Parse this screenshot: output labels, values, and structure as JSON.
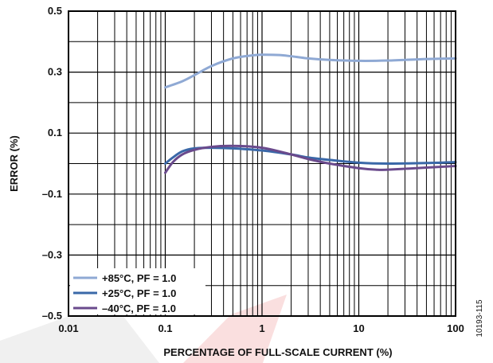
{
  "chart_data": {
    "type": "line",
    "figure_id": "10193-115",
    "xlabel": "PERCENTAGE OF FULL-SCALE CURRENT (%)",
    "ylabel": "ERROR (%)",
    "x_scale": "log",
    "xlim": [
      0.01,
      100
    ],
    "ylim": [
      -0.5,
      0.5
    ],
    "x_ticks": [
      0.01,
      0.1,
      1,
      10,
      100
    ],
    "x_tick_labels": [
      "0.01",
      "0.1",
      "1",
      "10",
      "100"
    ],
    "y_ticks": [
      0.5,
      0.3,
      0.1,
      -0.1,
      -0.3,
      -0.5
    ],
    "y_tick_labels": [
      "0.5",
      "0.3",
      "0.1",
      "–0.1",
      "–0.3",
      "–0.5"
    ],
    "grid": true,
    "legend_position": "bottom-left",
    "series": [
      {
        "name": "+85°C, PF = 1.0",
        "color": "#8FA9D4",
        "points": [
          [
            0.1,
            0.25
          ],
          [
            0.15,
            0.27
          ],
          [
            0.2,
            0.29
          ],
          [
            0.3,
            0.32
          ],
          [
            0.5,
            0.345
          ],
          [
            0.8,
            0.355
          ],
          [
            1,
            0.357
          ],
          [
            1.5,
            0.356
          ],
          [
            2,
            0.352
          ],
          [
            3,
            0.345
          ],
          [
            5,
            0.34
          ],
          [
            10,
            0.337
          ],
          [
            20,
            0.338
          ],
          [
            50,
            0.343
          ],
          [
            100,
            0.345
          ]
        ]
      },
      {
        "name": "+25°C, PF = 1.0",
        "color": "#3A68A8",
        "points": [
          [
            0.1,
            0.0
          ],
          [
            0.12,
            0.02
          ],
          [
            0.15,
            0.04
          ],
          [
            0.2,
            0.05
          ],
          [
            0.3,
            0.052
          ],
          [
            0.5,
            0.05
          ],
          [
            1,
            0.043
          ],
          [
            2,
            0.03
          ],
          [
            3,
            0.02
          ],
          [
            5,
            0.012
          ],
          [
            10,
            0.003
          ],
          [
            20,
            0.0
          ],
          [
            50,
            0.002
          ],
          [
            100,
            0.005
          ]
        ]
      },
      {
        "name": "–40°C, PF = 1.0",
        "color": "#6A4A8C",
        "points": [
          [
            0.1,
            -0.03
          ],
          [
            0.12,
            0.005
          ],
          [
            0.15,
            0.03
          ],
          [
            0.2,
            0.045
          ],
          [
            0.3,
            0.055
          ],
          [
            0.5,
            0.058
          ],
          [
            1,
            0.052
          ],
          [
            2,
            0.03
          ],
          [
            3,
            0.015
          ],
          [
            5,
            0.0
          ],
          [
            10,
            -0.015
          ],
          [
            15,
            -0.02
          ],
          [
            20,
            -0.02
          ],
          [
            50,
            -0.013
          ],
          [
            100,
            -0.008
          ]
        ]
      }
    ]
  }
}
